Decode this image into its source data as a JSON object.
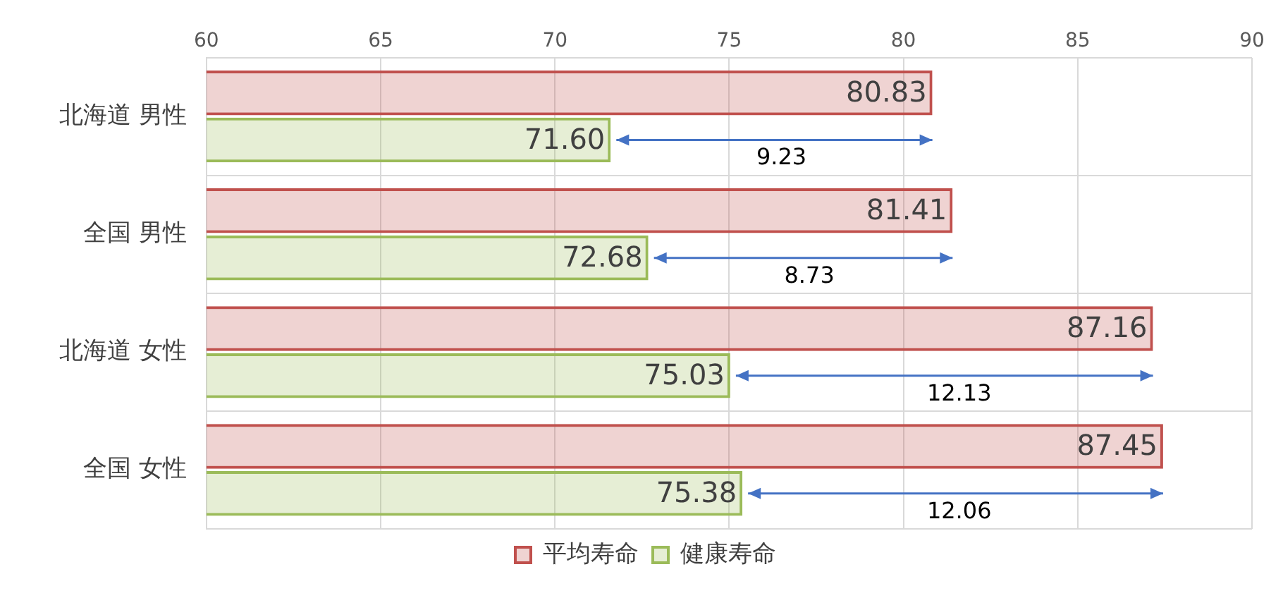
{
  "chart_data": {
    "type": "bar",
    "orientation": "horizontal",
    "categories": [
      "北海道 男性",
      "全国 男性",
      "北海道 女性",
      "全国 女性"
    ],
    "series": [
      {
        "name": "平均寿命",
        "color": "#c0504d",
        "values": [
          80.83,
          81.41,
          87.16,
          87.45
        ],
        "value_labels": [
          "80.83",
          "81.41",
          "87.16",
          "87.45"
        ]
      },
      {
        "name": "健康寿命",
        "color": "#9bbb59",
        "values": [
          71.6,
          72.68,
          75.03,
          75.38
        ],
        "value_labels": [
          "71.60",
          "72.68",
          "75.03",
          "75.38"
        ]
      }
    ],
    "xlim": [
      60,
      90
    ],
    "xticks": [
      60,
      65,
      70,
      75,
      80,
      85,
      90
    ],
    "grid": true,
    "legend": "bottom",
    "annotations": [
      {
        "text": "9.23",
        "x": 76.5,
        "y": "北海道 男性"
      },
      {
        "text": "8.73",
        "x": 77.3,
        "y": "全国 男性"
      },
      {
        "text": "12.13",
        "x": 81.6,
        "y": "北海道 女性"
      },
      {
        "text": "12.06",
        "x": 81.6,
        "y": "全国 女性"
      }
    ]
  }
}
